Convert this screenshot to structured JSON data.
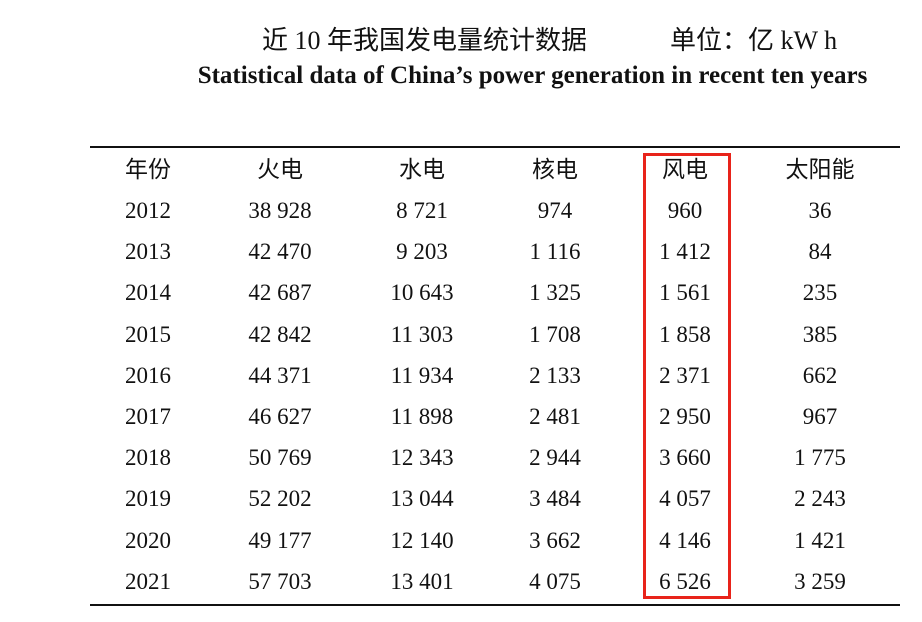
{
  "header": {
    "title": "近 10 年我国发电量统计数据",
    "unit": "单位：亿 kW h",
    "subtitle": "Statistical data of China’s power generation in recent ten years"
  },
  "table": {
    "columns": [
      "年份",
      "火电",
      "水电",
      "核电",
      "风电",
      "太阳能"
    ],
    "rows": [
      [
        "2012",
        "38 928",
        "8 721",
        "974",
        "960",
        "36"
      ],
      [
        "2013",
        "42 470",
        "9 203",
        "1 116",
        "1 412",
        "84"
      ],
      [
        "2014",
        "42 687",
        "10 643",
        "1 325",
        "1 561",
        "235"
      ],
      [
        "2015",
        "42 842",
        "11 303",
        "1 708",
        "1 858",
        "385"
      ],
      [
        "2016",
        "44 371",
        "11 934",
        "2 133",
        "2 371",
        "662"
      ],
      [
        "2017",
        "46 627",
        "11 898",
        "2 481",
        "2 950",
        "967"
      ],
      [
        "2018",
        "50 769",
        "12 343",
        "2 944",
        "3 660",
        "1 775"
      ],
      [
        "2019",
        "52 202",
        "13 044",
        "3 484",
        "4 057",
        "2 243"
      ],
      [
        "2020",
        "49 177",
        "12 140",
        "3 662",
        "4 146",
        "1 421"
      ],
      [
        "2021",
        "57 703",
        "13 401",
        "4 075",
        "6 526",
        "3 259"
      ]
    ]
  }
}
